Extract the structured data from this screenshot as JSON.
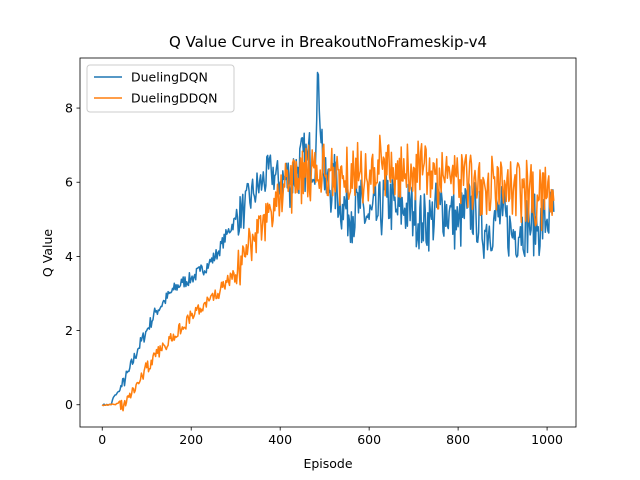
{
  "chart_data": {
    "type": "line",
    "title": "Q Value Curve in BreakoutNoFrameskip-v4",
    "xlabel": "Episode",
    "ylabel": "Q Value",
    "xlim": [
      -50,
      1065
    ],
    "ylim": [
      -0.6,
      9.35
    ],
    "xticks": [
      0,
      200,
      400,
      600,
      800,
      1000
    ],
    "yticks": [
      0,
      2,
      4,
      6,
      8
    ],
    "grid": false,
    "legend_position": "top-left",
    "series": [
      {
        "name": "DuelingDQN",
        "color": "#1f77b4",
        "x": [
          0,
          20,
          25,
          40,
          60,
          80,
          100,
          120,
          140,
          160,
          180,
          200,
          220,
          240,
          260,
          280,
          300,
          320,
          340,
          360,
          380,
          400,
          420,
          440,
          460,
          480,
          486,
          500,
          520,
          540,
          560,
          580,
          600,
          620,
          640,
          660,
          680,
          700,
          720,
          740,
          760,
          780,
          800,
          820,
          840,
          860,
          880,
          900,
          920,
          940,
          960,
          980,
          1000,
          1015
        ],
        "y": [
          0.0,
          0.0,
          0.2,
          0.4,
          0.9,
          1.5,
          2.0,
          2.5,
          2.8,
          3.1,
          3.3,
          3.4,
          3.6,
          3.8,
          4.1,
          4.6,
          5.0,
          5.3,
          5.7,
          6.0,
          6.3,
          6.0,
          6.1,
          6.4,
          6.6,
          6.8,
          8.9,
          5.8,
          6.0,
          5.4,
          5.2,
          5.3,
          5.0,
          5.1,
          5.6,
          5.2,
          5.3,
          5.2,
          4.9,
          5.0,
          5.4,
          5.2,
          4.8,
          5.3,
          5.2,
          4.7,
          5.0,
          5.1,
          4.6,
          4.8,
          4.9,
          4.8,
          5.0,
          5.2
        ]
      },
      {
        "name": "DuelingDDQN",
        "color": "#ff7f0e",
        "x": [
          0,
          20,
          30,
          40,
          45,
          60,
          80,
          100,
          120,
          140,
          160,
          180,
          200,
          220,
          240,
          260,
          280,
          300,
          320,
          340,
          360,
          380,
          400,
          420,
          440,
          460,
          480,
          500,
          520,
          540,
          560,
          580,
          600,
          620,
          640,
          660,
          680,
          700,
          720,
          740,
          760,
          780,
          800,
          820,
          840,
          860,
          880,
          900,
          920,
          940,
          960,
          980,
          1000,
          1015
        ],
        "y": [
          0.0,
          0.0,
          0.0,
          0.1,
          -0.1,
          0.2,
          0.6,
          1.0,
          1.3,
          1.6,
          1.9,
          2.1,
          2.4,
          2.6,
          2.8,
          3.0,
          3.3,
          3.5,
          4.0,
          4.5,
          4.8,
          5.2,
          5.6,
          5.9,
          6.1,
          6.2,
          6.0,
          6.2,
          6.4,
          6.1,
          6.5,
          6.3,
          6.0,
          6.6,
          6.2,
          6.5,
          6.1,
          6.4,
          6.2,
          6.3,
          6.0,
          6.4,
          6.2,
          6.1,
          6.0,
          5.9,
          6.1,
          5.7,
          5.9,
          5.6,
          5.8,
          5.5,
          5.6,
          5.5
        ]
      }
    ]
  }
}
